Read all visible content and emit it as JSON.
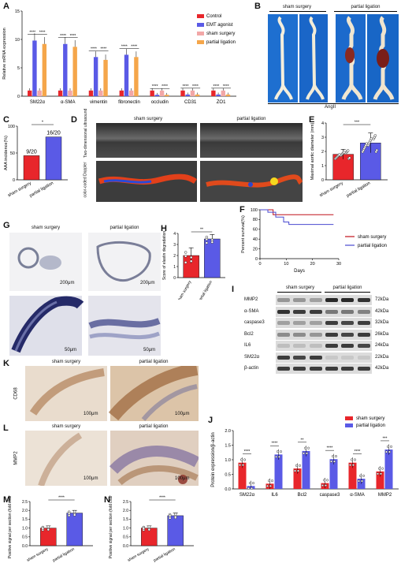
{
  "panels": {
    "A": {
      "label": "A",
      "chart_data": {
        "type": "bar",
        "ylabel": "Relative mRNA expression",
        "ylim": [
          0,
          15
        ],
        "yticks": [
          0,
          5,
          10,
          15
        ],
        "categories": [
          "SM22α",
          "α-SMA",
          "vimentin",
          "fibronectin",
          "occludin",
          "CD31",
          "ZO1"
        ],
        "series": [
          {
            "name": "Control",
            "color": "#e8262b",
            "values": [
              1,
              1,
              1,
              1,
              1,
              1,
              1
            ]
          },
          {
            "name": "EMT agonist",
            "color": "#5a5ae6",
            "values": [
              9.8,
              9.2,
              6.9,
              7.3,
              0.25,
              0.3,
              0.3
            ]
          },
          {
            "name": "sham surgery",
            "color": "#f2a7a7",
            "values": [
              1,
              1,
              1,
              1,
              1,
              1,
              1
            ]
          },
          {
            "name": "partial ligation",
            "color": "#f5a64a",
            "values": [
              9.2,
              8.7,
              6.4,
              6.9,
              0.25,
              0.3,
              0.3
            ]
          }
        ],
        "significance": "****"
      }
    },
    "B": {
      "label": "B",
      "groups": [
        "sham surgery",
        "partial ligation"
      ],
      "caption": "AngII"
    },
    "C": {
      "label": "C",
      "chart_data": {
        "type": "bar",
        "ylabel": "AAA incidence(%)",
        "ylim": [
          0,
          100
        ],
        "yticks": [
          0,
          50,
          100
        ],
        "categories": [
          "sham surgery",
          "partial ligation"
        ],
        "values": [
          45,
          80
        ],
        "colors": [
          "#e8262b",
          "#5a5ae6"
        ],
        "data_labels": [
          "9/20",
          "16/20"
        ],
        "significance": "*"
      }
    },
    "D": {
      "label": "D",
      "columns": [
        "sham surgery",
        "partial ligation"
      ],
      "rows": [
        "Two-dimensional ultrasound",
        "color-coded Doppler"
      ]
    },
    "E": {
      "label": "E",
      "chart_data": {
        "type": "bar",
        "ylabel": "Maximal aortic diameter (mm)",
        "ylim": [
          0,
          4
        ],
        "yticks": [
          0,
          1,
          2,
          3,
          4
        ],
        "categories": [
          "sham surgery",
          "partial ligation"
        ],
        "values": [
          1.8,
          2.6
        ],
        "colors": [
          "#e8262b",
          "#5a5ae6"
        ],
        "significance": "***"
      }
    },
    "F": {
      "label": "F",
      "chart_data": {
        "type": "line",
        "ylabel": "Percent survival(%)",
        "xlabel": "Days",
        "xlim": [
          0,
          30
        ],
        "ylim": [
          0,
          100
        ],
        "xticks": [
          0,
          10,
          20,
          30
        ],
        "yticks": [
          0,
          20,
          40,
          60,
          80,
          100
        ],
        "series": [
          {
            "name": "sham surgery",
            "color": "#c0101a",
            "x": [
              0,
              5,
              5,
              28
            ],
            "y": [
              100,
              100,
              90,
              90
            ]
          },
          {
            "name": "partial ligation",
            "color": "#4a4ad0",
            "x": [
              0,
              3,
              3,
              6,
              6,
              9,
              9,
              11,
              11,
              28
            ],
            "y": [
              100,
              100,
              95,
              95,
              85,
              85,
              75,
              75,
              70,
              70
            ]
          }
        ]
      }
    },
    "G": {
      "label": "G",
      "columns": [
        "sham surgery",
        "partial ligation"
      ],
      "scale_top": "200μm",
      "scale_bottom": "50μm"
    },
    "H": {
      "label": "H",
      "chart_data": {
        "type": "bar",
        "ylabel": "Score of elastin degradation",
        "ylim": [
          0,
          4
        ],
        "yticks": [
          0,
          1,
          2,
          3,
          4
        ],
        "categories": [
          "sham surgery",
          "partial ligation"
        ],
        "values": [
          2.0,
          3.5
        ],
        "colors": [
          "#e8262b",
          "#5a5ae6"
        ],
        "significance": "**"
      }
    },
    "I": {
      "label": "I",
      "columns": [
        "sham surgery",
        "partial ligation"
      ],
      "proteins": [
        "MMP2",
        "α-SMA",
        "caspase3",
        "Bcl2",
        "IL6",
        "SM22α",
        "β-actin"
      ],
      "sizes": [
        "72kDa",
        "42kDa",
        "32kDa",
        "26kDa",
        "24kDa",
        "22kDa",
        "42kDa"
      ]
    },
    "K": {
      "label": "K",
      "row_label": "CD68",
      "columns": [
        "sham surgery",
        "partial ligation"
      ],
      "scale": "100μm"
    },
    "L": {
      "label": "L",
      "row_label": "MMP2",
      "columns": [
        "sham surgery",
        "partial ligation"
      ],
      "scale": "100μm"
    },
    "J": {
      "label": "J",
      "chart_data": {
        "type": "bar",
        "ylabel": "Protein expression/β-actin",
        "ylim": [
          0,
          2.0
        ],
        "yticks": [
          0.0,
          0.5,
          1.0,
          1.5,
          2.0
        ],
        "categories": [
          "SM22α",
          "IL6",
          "Bcl2",
          "caspase3",
          "α-SMA",
          "MMP2"
        ],
        "series": [
          {
            "name": "sham surgery",
            "color": "#e8262b",
            "values": [
              0.9,
              0.18,
              0.7,
              0.2,
              0.9,
              0.6
            ]
          },
          {
            "name": "partial ligation",
            "color": "#5a5ae6",
            "values": [
              0.1,
              1.18,
              1.3,
              1.02,
              0.35,
              1.35
            ]
          }
        ],
        "significance": [
          "****",
          "****",
          "**",
          "****",
          "****",
          "***"
        ]
      }
    },
    "M": {
      "label": "M",
      "chart_data": {
        "type": "bar",
        "ylabel": "Positive signal per section (fold change)",
        "ylim": [
          0,
          2.5
        ],
        "yticks": [
          0.0,
          0.5,
          1.0,
          1.5,
          2.0,
          2.5
        ],
        "categories": [
          "sham surgery",
          "partial ligation"
        ],
        "values": [
          1.0,
          1.85
        ],
        "colors": [
          "#e8262b",
          "#5a5ae6"
        ],
        "significance": "****"
      }
    },
    "N": {
      "label": "N",
      "chart_data": {
        "type": "bar",
        "ylabel": "Positive signal per section (fold change)",
        "ylim": [
          0,
          2.5
        ],
        "yticks": [
          0.0,
          0.5,
          1.0,
          1.5,
          2.0,
          2.5
        ],
        "categories": [
          "sham surgery",
          "partial ligation"
        ],
        "values": [
          1.0,
          1.7
        ],
        "colors": [
          "#e8262b",
          "#5a5ae6"
        ],
        "significance": "****"
      }
    }
  }
}
